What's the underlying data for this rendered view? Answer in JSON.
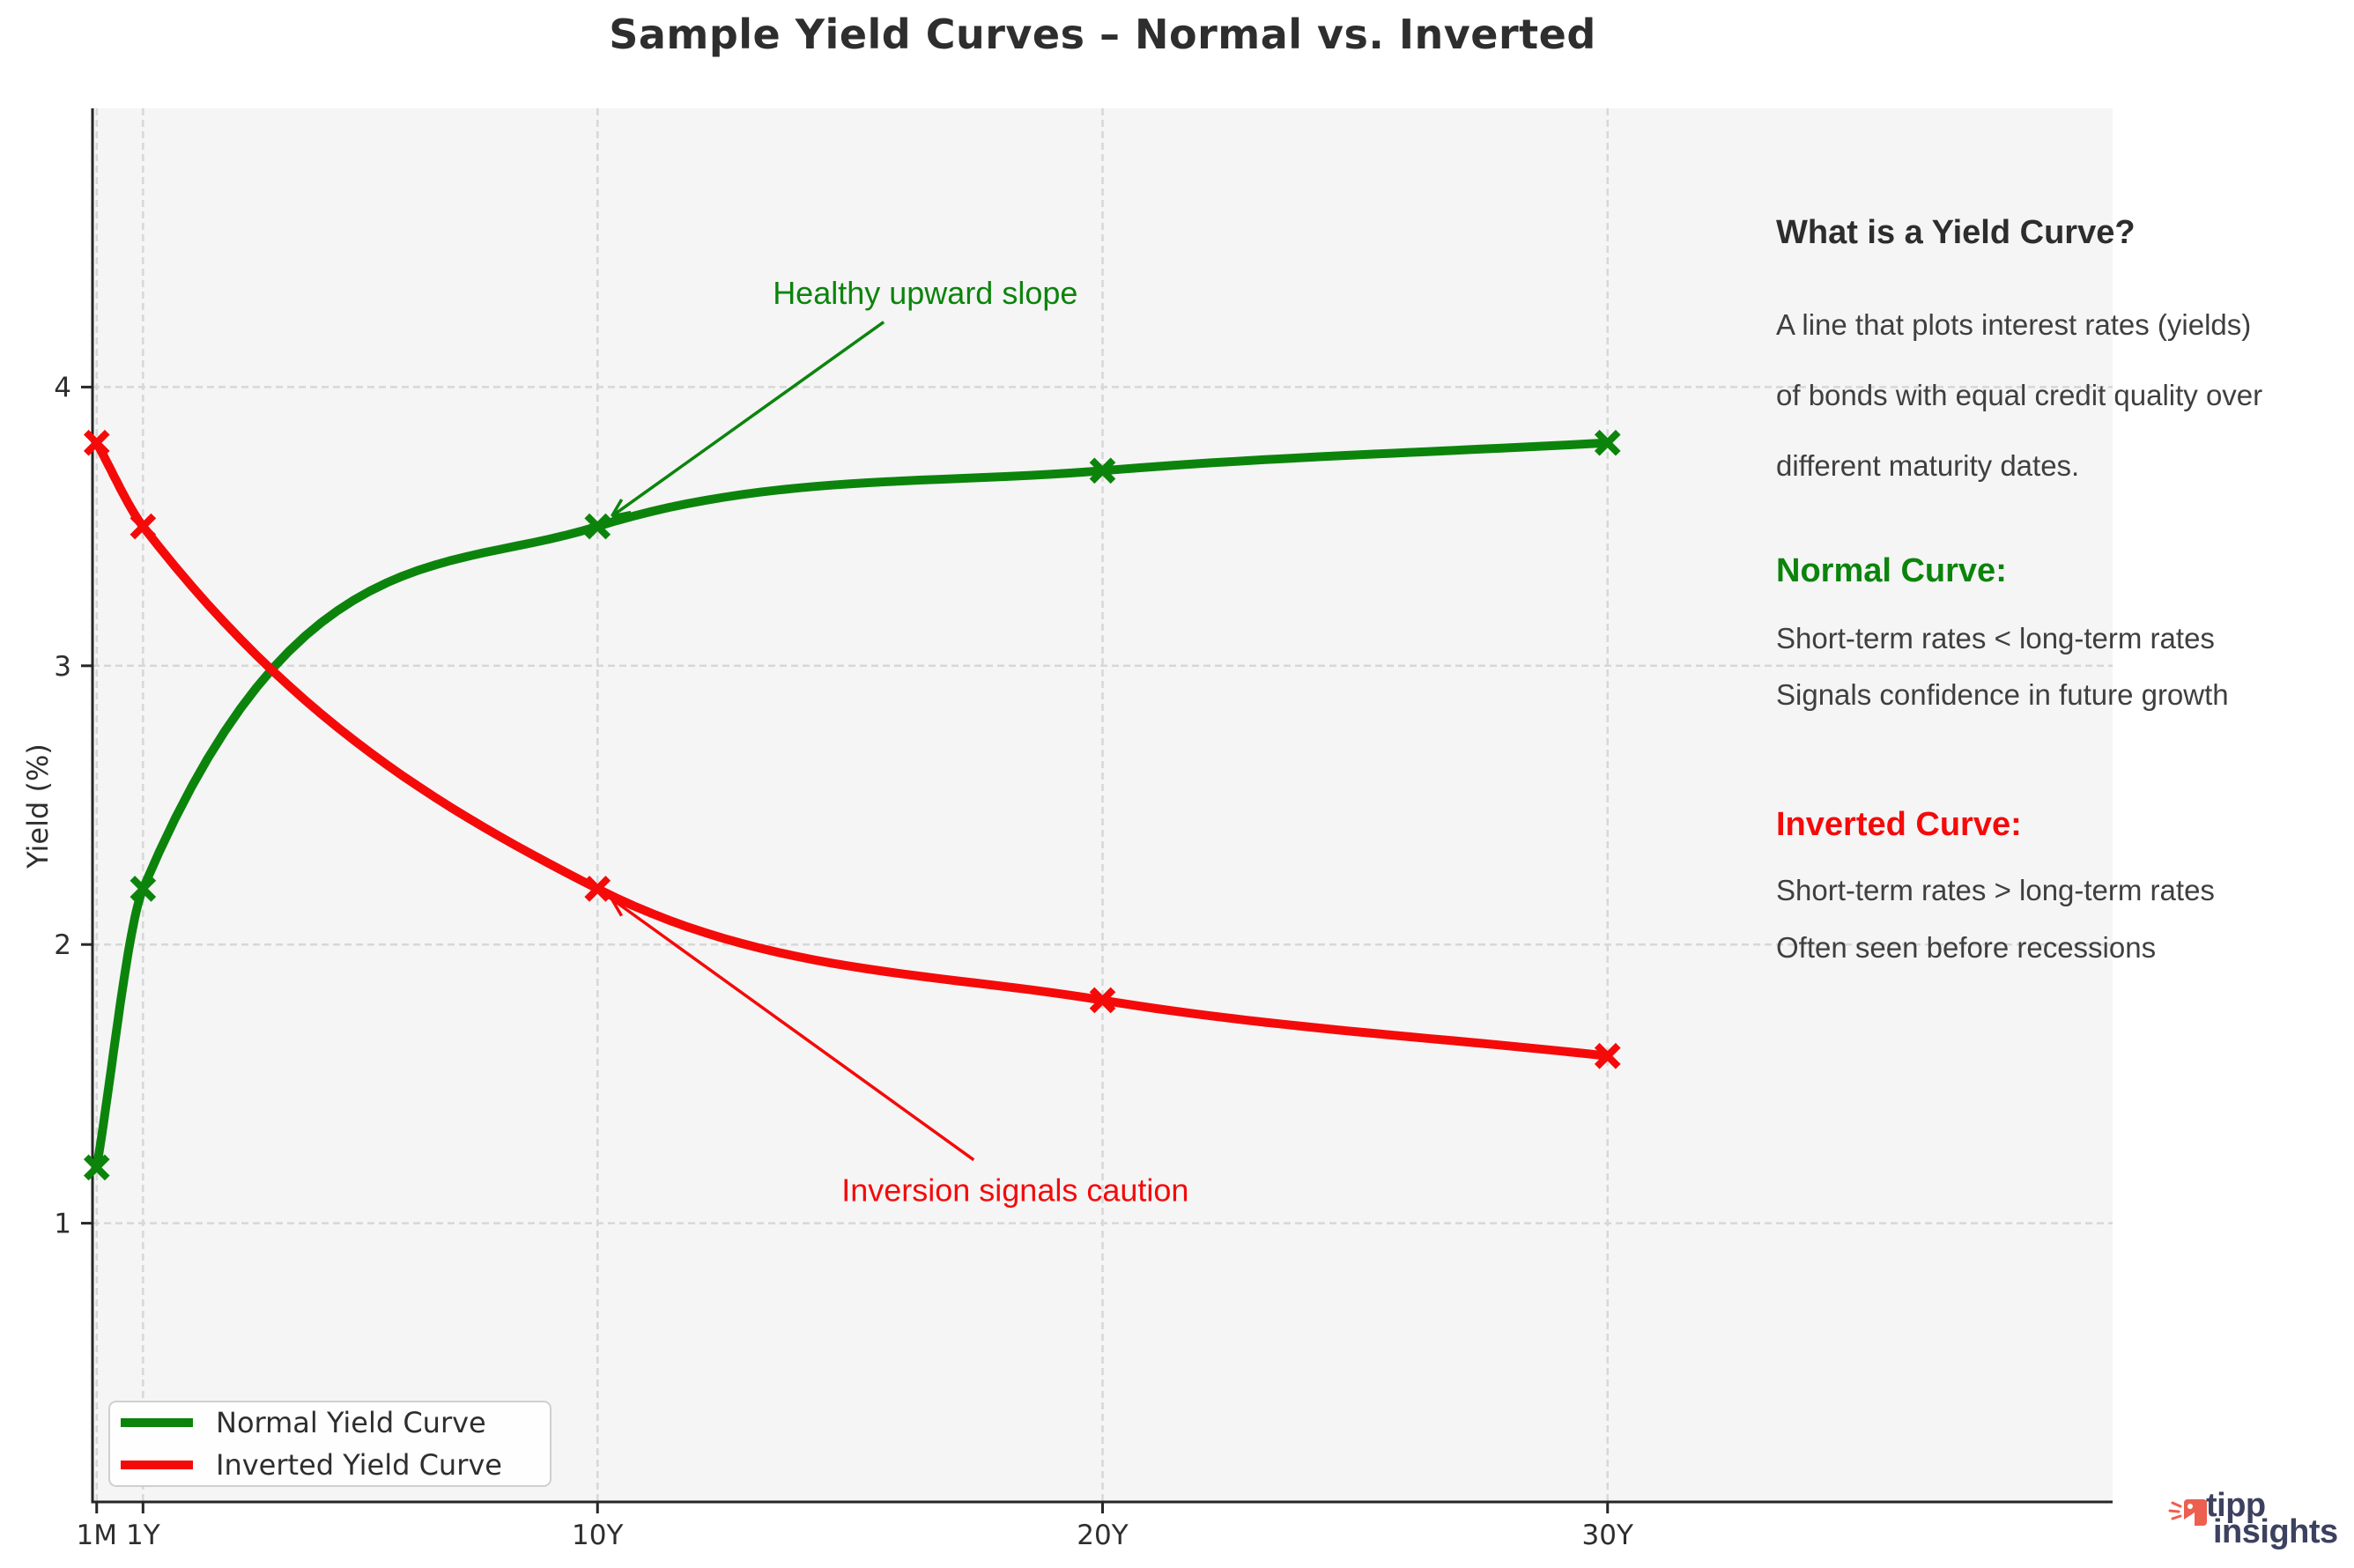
{
  "chart_data": {
    "type": "line",
    "title": "Sample Yield Curves – Normal vs. Inverted",
    "xlabel": "",
    "ylabel": "Yield (%)",
    "x_tick_labels": [
      "1M",
      "1Y",
      "10Y",
      "20Y",
      "30Y"
    ],
    "x_years": [
      0.083,
      1,
      10,
      20,
      30
    ],
    "y_ticks": [
      1,
      2,
      3,
      4
    ],
    "xlim": [
      0,
      40
    ],
    "ylim": [
      0,
      5
    ],
    "grid": "dashed",
    "legend_position": "lower-left",
    "series": [
      {
        "name": "Normal Yield Curve",
        "color": "#0c840c",
        "marker": "x",
        "values": [
          1.2,
          2.2,
          3.5,
          3.7,
          3.8
        ]
      },
      {
        "name": "Inverted Yield Curve",
        "color": "#f50a0a",
        "marker": "x",
        "values": [
          3.8,
          3.5,
          2.2,
          1.8,
          1.6
        ]
      }
    ],
    "annotations": [
      {
        "text": "Healthy upward slope",
        "color": "#0c840c",
        "target_x": 10,
        "target_y": 3.5,
        "label_x": 16.49,
        "label_y": 4.34
      },
      {
        "text": "Inversion signals caution",
        "color": "#f50a0a",
        "target_x": 10,
        "target_y": 2.2,
        "label_x": 18.27,
        "label_y": 1.12
      }
    ]
  },
  "info_panel": {
    "heading": "What is a Yield Curve?",
    "description_lines": [
      "A line that plots interest rates (yields)",
      "of bonds with equal credit quality over",
      "different maturity dates."
    ],
    "normal": {
      "heading": "Normal Curve:",
      "color": "#0c840c",
      "lines": [
        "Short-term rates < long-term rates",
        "Signals confidence in future growth"
      ]
    },
    "inverted": {
      "heading": "Inverted Curve:",
      "color": "#f50a0a",
      "lines": [
        "Short-term rates > long-term rates",
        "Often seen before recessions"
      ]
    }
  },
  "legend": {
    "items": [
      {
        "label": "Normal Yield Curve",
        "color": "#0c840c"
      },
      {
        "label": "Inverted Yield Curve",
        "color": "#f50a0a"
      }
    ]
  },
  "logo": {
    "line1": "tipp",
    "line2": "insights",
    "navy": "#3d4160",
    "coral": "#ed5f4f"
  },
  "colors": {
    "figure_bg": "#ffffff",
    "plot_bg": "#f5f5f5",
    "grid": "#d7d7d7",
    "spine": "#262626",
    "tick_label": "#2e2e2e",
    "title": "#2e2e2e"
  }
}
